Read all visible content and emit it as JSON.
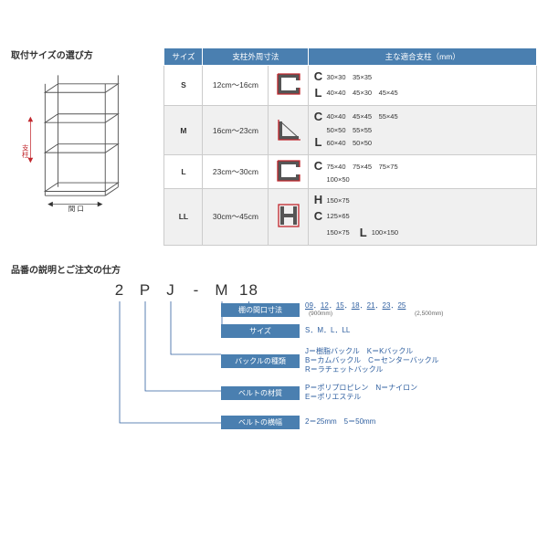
{
  "colors": {
    "header_bg": "#4a7fb0",
    "header_text": "#ffffff",
    "border": "#cccccc",
    "alt_bg": "#f0f0f0",
    "accent_red": "#c1272d",
    "link": "#3060a0"
  },
  "top": {
    "title": "取付サイズの選び方",
    "table_headers": {
      "size": "サイズ",
      "range": "支柱外周寸法",
      "pillars": "主な適合支柱（mm）"
    },
    "rows": [
      {
        "size": "S",
        "range": "12cm～16cm",
        "shape_type": "C",
        "pillars": [
          {
            "letter": "C",
            "text": "30×30　35×35"
          },
          {
            "letter": "L",
            "text": "40×40　45×30　45×45"
          }
        ]
      },
      {
        "size": "M",
        "range": "16cm～23cm",
        "shape_type": "L",
        "pillars": [
          {
            "letter": "C",
            "text": "40×40　45×45　55×45"
          },
          {
            "letter": "",
            "text": "50×50　55×55"
          },
          {
            "letter": "L",
            "text": "60×40　50×50"
          }
        ]
      },
      {
        "size": "L",
        "range": "23cm～30cm",
        "shape_type": "C",
        "pillars": [
          {
            "letter": "C",
            "text": "75×40　75×45　75×75"
          },
          {
            "letter": "",
            "text": "100×50"
          }
        ]
      },
      {
        "size": "LL",
        "range": "30cm～45cm",
        "shape_type": "H",
        "pillars": [
          {
            "letter": "H",
            "text": "150×75"
          },
          {
            "letter": "C",
            "text": "125×65"
          },
          {
            "letter": "",
            "text": "150×75",
            "trailing_letter": "L",
            "trailing_text": "100×150"
          }
        ]
      }
    ]
  },
  "bottom": {
    "title": "品番の説明とご注文の仕方",
    "code": {
      "segs": [
        "2",
        "P",
        "J",
        "-",
        "M",
        "18"
      ]
    },
    "fields": [
      {
        "label": "棚の間口寸法",
        "value_links": [
          "09",
          "12",
          "15",
          "18",
          "21",
          "23",
          "25"
        ],
        "subnote_left": "(900mm)",
        "subnote_right": "(2,500mm)"
      },
      {
        "label": "サイズ",
        "value": "S．M．L．LL"
      },
      {
        "label": "バックルの種類",
        "value": "J＝樹脂バックル　K＝Kバックル\nB＝カムバックル　C＝センターバックル\nR＝ラチェットバックル"
      },
      {
        "label": "ベルトの材質",
        "value": "P＝ポリプロピレン　N＝ナイロン\nE＝ポリエステル"
      },
      {
        "label": "ベルトの横幅",
        "value": "2＝25mm　5＝50mm"
      }
    ]
  }
}
